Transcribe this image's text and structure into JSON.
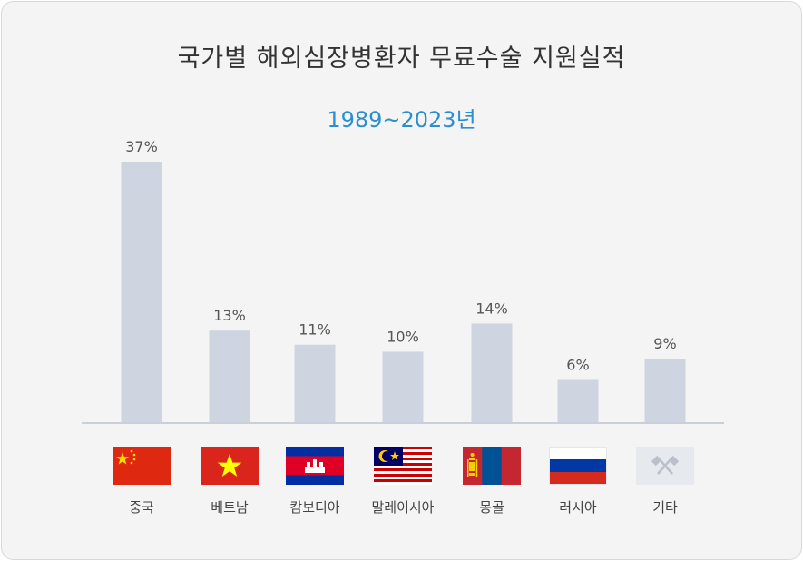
{
  "title": "국가별 해외심장병환자 무료수술 지원실적",
  "subtitle": "1989~2023년",
  "colors": {
    "bar": "#cfd5e0",
    "axis": "#c9d0dc",
    "subtitle": "#2a8fd0"
  },
  "chart_data": {
    "type": "bar",
    "title": "국가별 해외심장병환자 무료수술 지원실적",
    "subtitle": "1989~2023년",
    "categories": [
      "중국",
      "베트남",
      "캄보디아",
      "말레이시아",
      "몽골",
      "러시아",
      "기타"
    ],
    "values": [
      37,
      13,
      11,
      10,
      14,
      6,
      9
    ],
    "value_labels": [
      "37%",
      "13%",
      "11%",
      "10%",
      "14%",
      "6%",
      "9%"
    ],
    "unit": "%",
    "ylim": [
      0,
      37
    ],
    "grid": false,
    "legend": "none"
  },
  "flags": [
    "china-flag-icon",
    "vietnam-flag-icon",
    "cambodia-flag-icon",
    "malaysia-flag-icon",
    "mongolia-flag-icon",
    "russia-flag-icon",
    "other-flag-icon"
  ]
}
